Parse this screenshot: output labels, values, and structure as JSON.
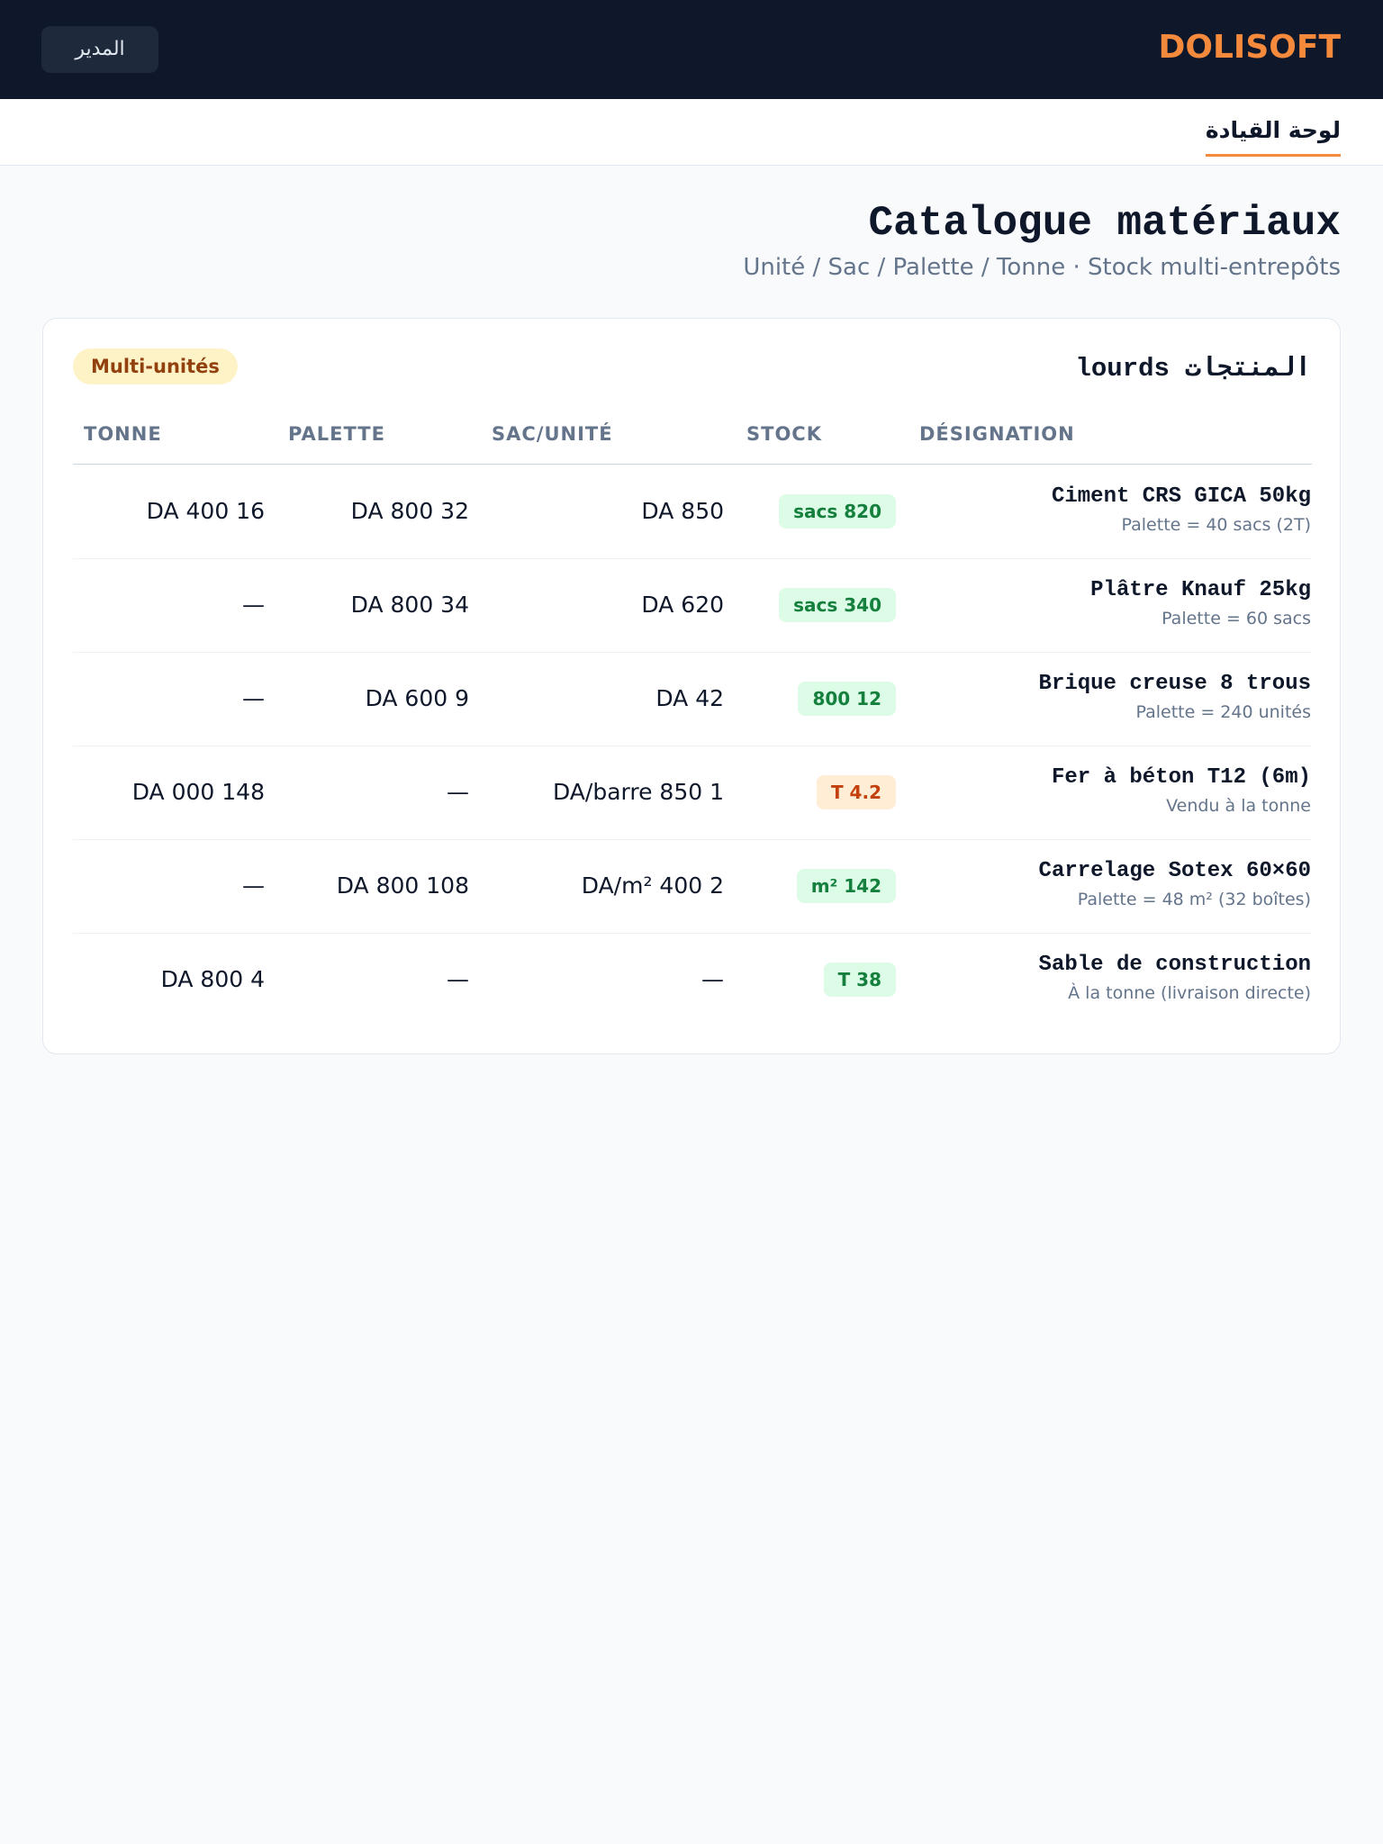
{
  "header": {
    "brand": "DOLISOFT",
    "user": "المدير"
  },
  "nav": {
    "tab": "لوحة القيادة"
  },
  "page": {
    "title": "Catalogue matériaux",
    "subtitle": "Unité / Sac / Palette / Tonne · Stock multi-entrepôts"
  },
  "card": {
    "title": "المنتجات lourds",
    "badge": "Multi-unités",
    "columns": [
      "DÉSIGNATION",
      "STOCK",
      "SAC/UNITÉ",
      "PALETTE",
      "TONNE"
    ],
    "rows": [
      {
        "designation": "Ciment CRS GICA 50kg",
        "note": "Palette = 40 sacs (2T)",
        "stock": "sacs 820",
        "stock_color": "green",
        "sac": "DA 850",
        "palette": "DA 800 32",
        "tonne": "DA 400 16"
      },
      {
        "designation": "Plâtre Knauf 25kg",
        "note": "Palette = 60 sacs",
        "stock": "sacs 340",
        "stock_color": "green",
        "sac": "DA 620",
        "palette": "DA 800 34",
        "tonne": "—"
      },
      {
        "designation": "Brique creuse 8 trous",
        "note": "Palette = 240 unités",
        "stock": "800 12",
        "stock_color": "green",
        "sac": "DA 42",
        "palette": "DA 600 9",
        "tonne": "—"
      },
      {
        "designation": "Fer à béton T12 (6m)",
        "note": "Vendu à la tonne",
        "stock": "T 4.2",
        "stock_color": "orange",
        "sac": "DA/barre 850 1",
        "palette": "—",
        "tonne": "DA 000 148"
      },
      {
        "designation": "Carrelage Sotex 60×60",
        "note": "Palette = 48 m² (32 boîtes)",
        "stock": "m² 142",
        "stock_color": "green",
        "sac": "DA/m² 400 2",
        "palette": "DA 800 108",
        "tonne": "—"
      },
      {
        "designation": "Sable de construction",
        "note": "À la tonne (livraison directe)",
        "stock": "T 38",
        "stock_color": "green",
        "sac": "—",
        "palette": "—",
        "tonne": "DA 800 4"
      }
    ]
  }
}
